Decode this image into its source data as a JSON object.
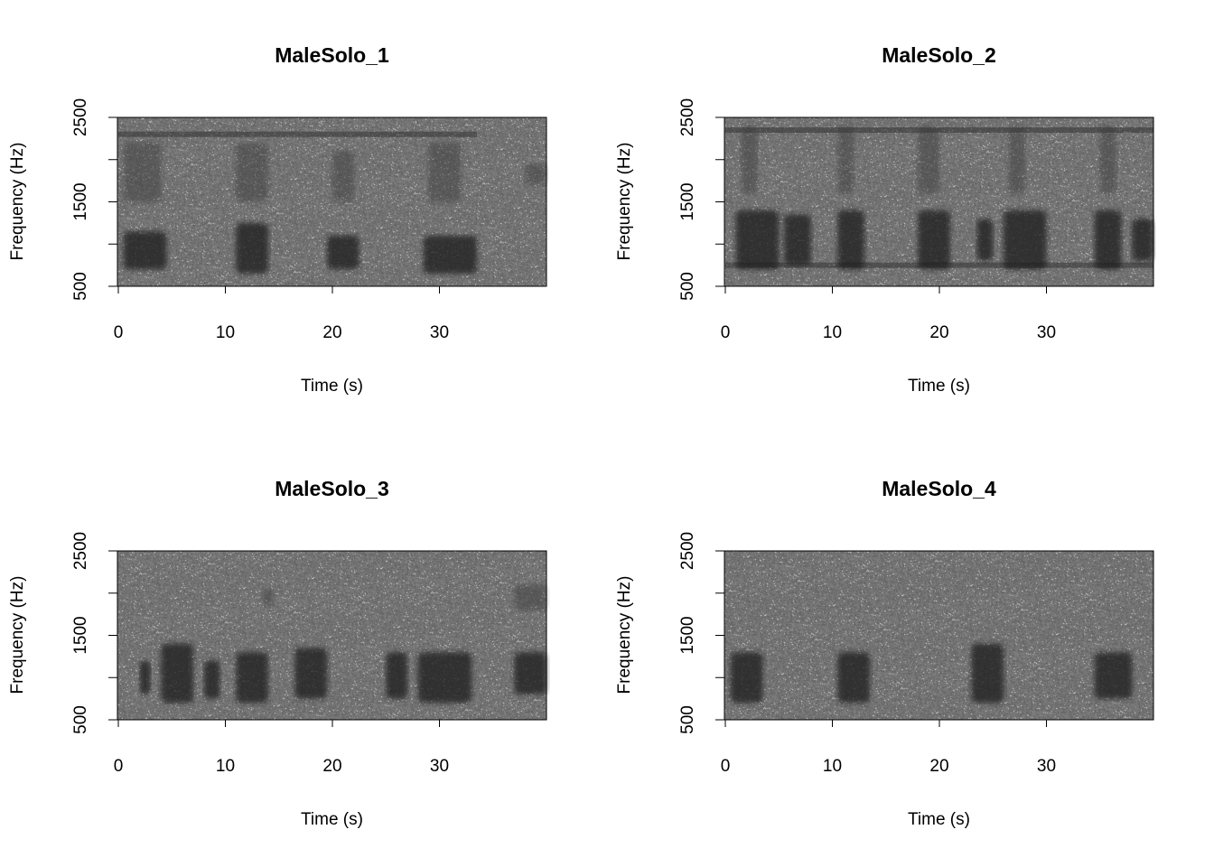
{
  "chart_data": [
    {
      "type": "heatmap",
      "title": "MaleSolo_1",
      "xlabel": "Time (s)",
      "ylabel": "Frequency (Hz)",
      "xlim": [
        0,
        40
      ],
      "ylim": [
        500,
        2500
      ],
      "xticks": [
        "0",
        "10",
        "20",
        "30"
      ],
      "yticks": [
        "500",
        "1500",
        "2500"
      ],
      "yticks_unlabeled": [
        1000,
        2000
      ],
      "colormap": "grayscale",
      "bands": [
        {
          "t": [
            0,
            33.5
          ],
          "f": 2300
        }
      ],
      "calls": [
        [
          0.5,
          4.5,
          700,
          1150
        ],
        [
          11,
          14,
          650,
          1250
        ],
        [
          19.5,
          22.5,
          700,
          1100
        ],
        [
          28.5,
          33.5,
          650,
          1100
        ],
        [
          0.5,
          4,
          1500,
          2200
        ],
        [
          11,
          14,
          1500,
          2200
        ],
        [
          20,
          22,
          1500,
          2100
        ],
        [
          29,
          32,
          1500,
          2200
        ],
        [
          38,
          40,
          1700,
          1950
        ]
      ]
    },
    {
      "type": "heatmap",
      "title": "MaleSolo_2",
      "xlabel": "Time (s)",
      "ylabel": "Frequency (Hz)",
      "xlim": [
        0,
        40
      ],
      "ylim": [
        500,
        2500
      ],
      "xticks": [
        "0",
        "10",
        "20",
        "30"
      ],
      "yticks": [
        "500",
        "1500",
        "2500"
      ],
      "yticks_unlabeled": [
        1000,
        2000
      ],
      "colormap": "grayscale",
      "bands": [
        {
          "t": [
            0,
            40
          ],
          "f": 2350
        },
        {
          "t": [
            0,
            40
          ],
          "f": 750
        }
      ],
      "calls": [
        [
          1,
          5,
          700,
          1400
        ],
        [
          5.5,
          8,
          750,
          1350
        ],
        [
          10.5,
          13,
          700,
          1400
        ],
        [
          18,
          21,
          700,
          1400
        ],
        [
          23.5,
          25,
          800,
          1300
        ],
        [
          26,
          30,
          700,
          1400
        ],
        [
          34.5,
          37,
          700,
          1400
        ],
        [
          38,
          40,
          800,
          1300
        ],
        [
          1.5,
          3,
          1600,
          2400
        ],
        [
          10.5,
          12,
          1600,
          2400
        ],
        [
          18,
          20,
          1600,
          2400
        ],
        [
          26.5,
          28,
          1600,
          2400
        ],
        [
          35,
          36.5,
          1600,
          2400
        ]
      ]
    },
    {
      "type": "heatmap",
      "title": "MaleSolo_3",
      "xlabel": "Time (s)",
      "ylabel": "Frequency (Hz)",
      "xlim": [
        0,
        40
      ],
      "ylim": [
        500,
        2500
      ],
      "xticks": [
        "0",
        "10",
        "20",
        "30"
      ],
      "yticks": [
        "500",
        "1500",
        "2500"
      ],
      "yticks_unlabeled": [
        1000,
        2000
      ],
      "colormap": "grayscale",
      "bands": [],
      "calls": [
        [
          2,
          3,
          800,
          1200
        ],
        [
          4,
          7,
          700,
          1400
        ],
        [
          8,
          9.5,
          750,
          1200
        ],
        [
          11,
          14,
          700,
          1300
        ],
        [
          16.5,
          19.5,
          750,
          1350
        ],
        [
          25,
          27,
          750,
          1300
        ],
        [
          28,
          33,
          700,
          1300
        ],
        [
          37,
          40,
          800,
          1300
        ],
        [
          13.5,
          14.5,
          1850,
          2050
        ],
        [
          37,
          40,
          1800,
          2100
        ]
      ]
    },
    {
      "type": "heatmap",
      "title": "MaleSolo_4",
      "xlabel": "Time (s)",
      "ylabel": "Frequency (Hz)",
      "xlim": [
        0,
        40
      ],
      "ylim": [
        500,
        2500
      ],
      "xticks": [
        "0",
        "10",
        "20",
        "30"
      ],
      "yticks": [
        "500",
        "1500",
        "2500"
      ],
      "yticks_unlabeled": [
        1000,
        2000
      ],
      "colormap": "grayscale",
      "bands": [],
      "calls": [
        [
          0.5,
          3.5,
          700,
          1300
        ],
        [
          10.5,
          13.5,
          700,
          1300
        ],
        [
          23,
          26,
          700,
          1400
        ],
        [
          34.5,
          38,
          750,
          1300
        ]
      ]
    }
  ]
}
